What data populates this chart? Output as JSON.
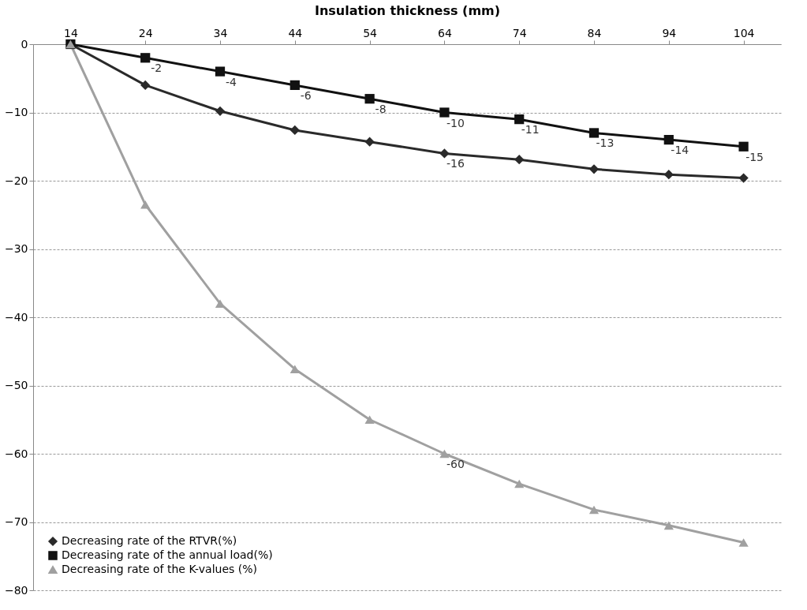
{
  "chart_data": {
    "type": "line",
    "xlabel": "Insulation thickness (mm)",
    "categories": [
      "14",
      "24",
      "34",
      "44",
      "54",
      "64",
      "74",
      "84",
      "94",
      "104"
    ],
    "series": [
      {
        "name": "Decreasing rate of the RTVR(%)",
        "color": "#2a2a2a",
        "marker": "diamond",
        "values": [
          0,
          -6,
          -9.8,
          -12.6,
          -14.3,
          -16,
          -16.9,
          -18.3,
          -19.1,
          -19.6
        ],
        "value_labels": [
          null,
          null,
          null,
          null,
          null,
          "-16",
          null,
          null,
          null,
          null
        ]
      },
      {
        "name": "Decreasing rate of the annual load(%)",
        "color": "#111111",
        "marker": "square",
        "values": [
          0,
          -2,
          -4,
          -6,
          -8,
          -10,
          -11,
          -13,
          -14,
          -15
        ],
        "value_labels": [
          null,
          "-2",
          "-4",
          "-6",
          "-8",
          "-10",
          "-11",
          "-13",
          "-14",
          "-15"
        ]
      },
      {
        "name": "Decreasing rate of the K-values (%)",
        "color": "#a0a0a0",
        "marker": "triangle",
        "values": [
          0,
          -23.5,
          -38,
          -47.6,
          -55,
          -60,
          -64.4,
          -68.2,
          -70.5,
          -73
        ],
        "value_labels": [
          null,
          null,
          null,
          null,
          null,
          "-60",
          null,
          null,
          null,
          null
        ]
      }
    ],
    "ylim": [
      -80,
      0
    ],
    "yticks": [
      -80,
      -70,
      -60,
      -50,
      -40,
      -30,
      -20,
      -10,
      0
    ],
    "grid": "y",
    "legend": "bottom left"
  }
}
